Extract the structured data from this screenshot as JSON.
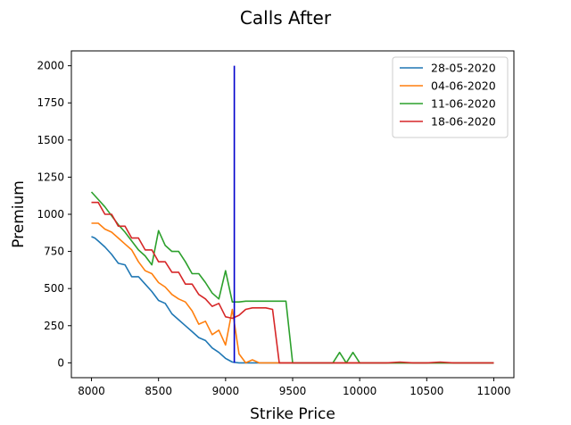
{
  "chart_data": {
    "type": "line",
    "title": "Calls After",
    "xlabel": "Strike Price",
    "ylabel": "Premium",
    "xlim": [
      7850,
      11150
    ],
    "ylim": [
      -100,
      2100
    ],
    "x_ticks": [
      8000,
      8500,
      9000,
      9500,
      10000,
      10500,
      11000
    ],
    "y_ticks": [
      0,
      250,
      500,
      750,
      1000,
      1250,
      1500,
      1750,
      2000
    ],
    "grid": false,
    "legend_position": "top-right",
    "colors": {
      "28-05-2020": "#1f77b4",
      "04-06-2020": "#ff7f0e",
      "11-06-2020": "#2ca02c",
      "18-06-2020": "#d62728",
      "vline": "#0000cc"
    },
    "vline": {
      "x": 9065,
      "y0": 0,
      "y1": 2000
    },
    "series": [
      {
        "name": "28-05-2020",
        "x": [
          8000,
          8025,
          8050,
          8100,
          8150,
          8200,
          8250,
          8300,
          8350,
          8400,
          8450,
          8500,
          8550,
          8600,
          8650,
          8700,
          8750,
          8800,
          8850,
          8900,
          8950,
          9000,
          9050,
          9100,
          9150,
          9200,
          9250,
          9300,
          9400,
          9500,
          9600,
          9700,
          9800,
          9900,
          10000,
          10100,
          10200,
          10300,
          10400,
          10500,
          10600,
          10700,
          10800,
          10900,
          11000
        ],
        "y": [
          850,
          840,
          820,
          780,
          730,
          670,
          660,
          580,
          580,
          530,
          480,
          420,
          400,
          330,
          290,
          250,
          210,
          170,
          150,
          100,
          70,
          30,
          5,
          0,
          0,
          0,
          0,
          0,
          0,
          0,
          0,
          0,
          0,
          0,
          0,
          0,
          0,
          0,
          0,
          0,
          0,
          0,
          0,
          0,
          0
        ]
      },
      {
        "name": "04-06-2020",
        "x": [
          8000,
          8050,
          8100,
          8150,
          8200,
          8250,
          8300,
          8350,
          8400,
          8450,
          8500,
          8550,
          8600,
          8650,
          8700,
          8750,
          8800,
          8850,
          8900,
          8950,
          9000,
          9050,
          9100,
          9150,
          9200,
          9250,
          9300,
          9400,
          9500,
          9600,
          9700,
          9800,
          9900,
          10000,
          10100,
          10200,
          10300,
          10400,
          10500,
          10600,
          10700,
          10800,
          10900,
          11000
        ],
        "y": [
          940,
          940,
          900,
          880,
          840,
          800,
          760,
          680,
          620,
          600,
          540,
          510,
          460,
          430,
          410,
          350,
          260,
          280,
          190,
          220,
          120,
          360,
          60,
          0,
          20,
          0,
          0,
          0,
          0,
          0,
          0,
          0,
          0,
          0,
          0,
          0,
          0,
          0,
          0,
          0,
          0,
          0,
          0,
          0
        ]
      },
      {
        "name": "11-06-2020",
        "x": [
          8000,
          8050,
          8100,
          8150,
          8200,
          8250,
          8300,
          8350,
          8400,
          8450,
          8500,
          8550,
          8600,
          8650,
          8700,
          8750,
          8800,
          8850,
          8900,
          8950,
          9000,
          9050,
          9100,
          9150,
          9200,
          9250,
          9300,
          9350,
          9400,
          9450,
          9500,
          9600,
          9700,
          9800,
          9850,
          9900,
          9950,
          10000,
          10100,
          10200,
          10300,
          10400,
          10500,
          10600,
          10700,
          10800,
          10900,
          11000
        ],
        "y": [
          1150,
          1100,
          1050,
          990,
          930,
          880,
          820,
          760,
          720,
          660,
          890,
          790,
          750,
          750,
          680,
          600,
          600,
          540,
          470,
          430,
          620,
          410,
          410,
          415,
          415,
          415,
          415,
          415,
          415,
          415,
          0,
          0,
          0,
          0,
          70,
          0,
          70,
          0,
          0,
          0,
          0,
          0,
          0,
          0,
          0,
          0,
          0,
          0
        ]
      },
      {
        "name": "18-06-2020",
        "x": [
          8000,
          8050,
          8100,
          8150,
          8200,
          8250,
          8300,
          8350,
          8400,
          8450,
          8500,
          8550,
          8600,
          8650,
          8700,
          8750,
          8800,
          8850,
          8900,
          8950,
          9000,
          9050,
          9100,
          9150,
          9200,
          9250,
          9300,
          9350,
          9400,
          9500,
          9600,
          9700,
          9800,
          9900,
          10000,
          10100,
          10200,
          10300,
          10400,
          10500,
          10600,
          10700,
          10800,
          10900,
          11000
        ],
        "y": [
          1080,
          1080,
          1000,
          1000,
          920,
          920,
          840,
          840,
          760,
          760,
          680,
          680,
          610,
          610,
          530,
          530,
          460,
          430,
          380,
          400,
          310,
          300,
          320,
          360,
          370,
          370,
          370,
          360,
          0,
          0,
          0,
          0,
          0,
          0,
          0,
          0,
          0,
          5,
          0,
          0,
          5,
          0,
          0,
          0,
          0
        ]
      }
    ]
  }
}
